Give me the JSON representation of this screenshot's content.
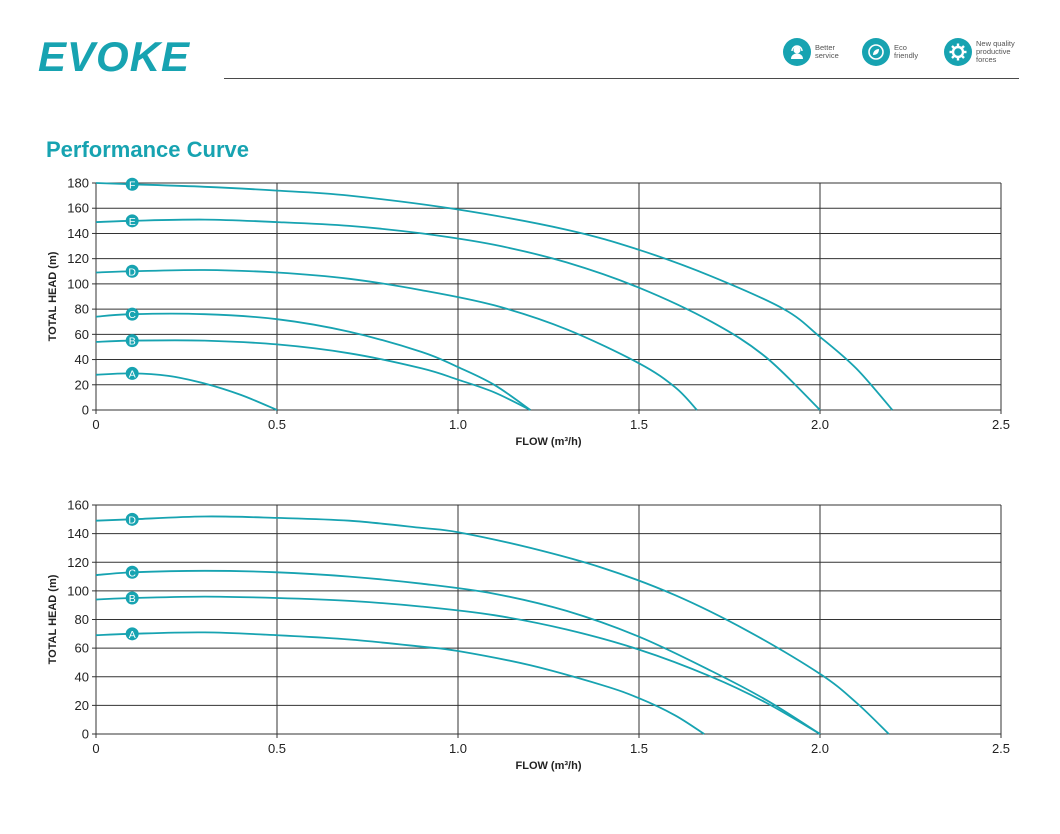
{
  "header": {
    "logo": "EVOKE",
    "badges": [
      {
        "label": "Better\nservice",
        "icon": "headset-icon"
      },
      {
        "label": "Eco\nfriendly",
        "icon": "leaf-icon"
      },
      {
        "label": "New quality\nproductive\nforces",
        "icon": "gear-icon"
      }
    ]
  },
  "section_title": "Performance Curve",
  "colors": {
    "accent": "#17a3b1",
    "grid": "#333333"
  },
  "chart_data": [
    {
      "type": "line",
      "xlabel": "FLOW (m³/h)",
      "ylabel": "TOTAL  HEAD (m)",
      "xlim": [
        0,
        2.5
      ],
      "ylim": [
        0,
        180
      ],
      "xticks": [
        0,
        0.5,
        1.0,
        1.5,
        2.0,
        2.5
      ],
      "xtick_labels": [
        "0",
        "0.5",
        "1.0",
        "1.5",
        "2.0",
        "2.5"
      ],
      "yticks": [
        0,
        20,
        40,
        60,
        80,
        100,
        120,
        140,
        160,
        180
      ],
      "grid": true,
      "series": [
        {
          "name": "A",
          "x": [
            0,
            0.1,
            0.2,
            0.3,
            0.4,
            0.5
          ],
          "y": [
            28,
            29,
            27,
            21,
            12,
            0
          ]
        },
        {
          "name": "B",
          "x": [
            0,
            0.1,
            0.3,
            0.5,
            0.7,
            0.9,
            1.0,
            1.1,
            1.2
          ],
          "y": [
            54,
            55,
            55,
            52,
            45,
            33,
            24,
            14,
            0
          ]
        },
        {
          "name": "C",
          "x": [
            0,
            0.1,
            0.3,
            0.5,
            0.7,
            0.9,
            1.0,
            1.1,
            1.2
          ],
          "y": [
            74,
            76,
            76,
            72,
            62,
            46,
            34,
            20,
            0
          ]
        },
        {
          "name": "D",
          "x": [
            0,
            0.1,
            0.3,
            0.5,
            0.7,
            0.9,
            1.1,
            1.3,
            1.5,
            1.6,
            1.66
          ],
          "y": [
            109,
            110,
            111,
            109,
            104,
            95,
            83,
            64,
            37,
            18,
            0
          ]
        },
        {
          "name": "E",
          "x": [
            0,
            0.1,
            0.3,
            0.5,
            0.7,
            0.9,
            1.1,
            1.3,
            1.5,
            1.7,
            1.85,
            2.0
          ],
          "y": [
            149,
            150,
            151,
            149,
            146,
            140,
            131,
            117,
            97,
            70,
            42,
            0
          ]
        },
        {
          "name": "F",
          "x": [
            0,
            0.1,
            0.3,
            0.5,
            0.7,
            1.0,
            1.3,
            1.5,
            1.7,
            1.9,
            2.0,
            2.1,
            2.2
          ],
          "y": [
            180,
            179,
            177,
            174,
            170,
            159,
            143,
            127,
            106,
            80,
            58,
            33,
            0
          ]
        }
      ]
    },
    {
      "type": "line",
      "xlabel": "FLOW (m³/h)",
      "ylabel": "TOTAL  HEAD (m)",
      "xlim": [
        0,
        2.5
      ],
      "ylim": [
        0,
        160
      ],
      "xticks": [
        0,
        0.5,
        1.0,
        1.5,
        2.0,
        2.5
      ],
      "xtick_labels": [
        "0",
        "0.5",
        "1.0",
        "1.5",
        "2.0",
        "2.5"
      ],
      "yticks": [
        0,
        20,
        40,
        60,
        80,
        100,
        120,
        140,
        160
      ],
      "grid": true,
      "series": [
        {
          "name": "A",
          "x": [
            0,
            0.1,
            0.3,
            0.5,
            0.7,
            0.9,
            1.0,
            1.2,
            1.4,
            1.5,
            1.6,
            1.68
          ],
          "y": [
            69,
            70,
            71,
            69,
            66,
            61,
            58,
            48,
            34,
            25,
            13,
            0
          ]
        },
        {
          "name": "B",
          "x": [
            0,
            0.1,
            0.3,
            0.5,
            0.7,
            0.9,
            1.1,
            1.3,
            1.5,
            1.7,
            1.85,
            2.0
          ],
          "y": [
            94,
            95,
            96,
            95,
            93,
            89,
            83,
            73,
            59,
            40,
            22,
            0
          ]
        },
        {
          "name": "C",
          "x": [
            0,
            0.1,
            0.3,
            0.5,
            0.7,
            0.9,
            1.1,
            1.3,
            1.5,
            1.7,
            1.85,
            2.0
          ],
          "y": [
            111,
            113,
            114,
            113,
            110,
            105,
            98,
            86,
            68,
            44,
            24,
            0
          ]
        },
        {
          "name": "D",
          "x": [
            0,
            0.1,
            0.3,
            0.5,
            0.7,
            0.9,
            1.0,
            1.2,
            1.4,
            1.6,
            1.8,
            2.0,
            2.1,
            2.19
          ],
          "y": [
            149,
            150,
            152,
            151,
            149,
            144,
            141,
            130,
            116,
            97,
            72,
            42,
            22,
            0
          ]
        }
      ]
    }
  ]
}
